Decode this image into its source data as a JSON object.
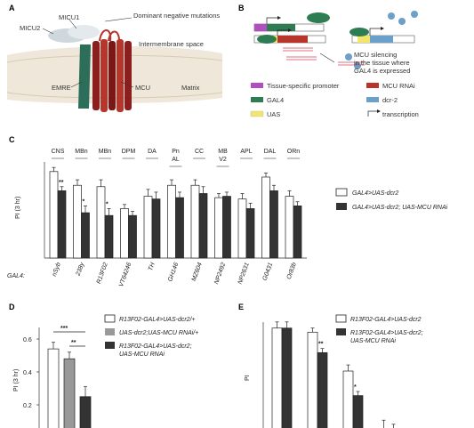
{
  "panels": {
    "a": "A",
    "b": "B",
    "c": "C",
    "d": "D",
    "e": "E"
  },
  "panel_a": {
    "micu1": "MICU1",
    "micu2": "MICU2",
    "dominant": "Dominant negative mutations",
    "intermembrane": "Intermembrane space",
    "emre": "EMRE",
    "mcu": "MCU",
    "matrix": "Matrix"
  },
  "panel_b": {
    "silencing_1": "MCU silencing",
    "silencing_2": "in the tissue where",
    "silencing_3": "GAL4 is expressed",
    "legend": [
      {
        "label": "Tissue-specific promoter",
        "color": "#b24fc0"
      },
      {
        "label": "GAL4",
        "color": "#2e7d52"
      },
      {
        "label": "UAS",
        "color": "#f2e56b"
      },
      {
        "label": "MCU RNAi",
        "color": "#b7352a"
      },
      {
        "label": "dcr-2",
        "color": "#6aa0c9"
      },
      {
        "label": "transcription",
        "color": "#222222"
      }
    ]
  },
  "chart_data": [
    {
      "type": "bar",
      "panel": "C",
      "regions": [
        "CNS",
        "MBn",
        "MBn",
        "DPM",
        "DA",
        "Pn AL",
        "CC",
        "MB V2",
        "APL",
        "DAL",
        "ORn"
      ],
      "categories": [
        "nSyb",
        "238y",
        "R13F02",
        "VT64246",
        "TH",
        "GH146",
        "MZ604",
        "NP2492",
        "NP2631",
        "G0431",
        "Or83b"
      ],
      "gal4_label": "GAL4:",
      "ylabel": "PI (3 hr)",
      "series": [
        {
          "name": "GAL4>UAS-dcr2",
          "values": [
            0.63,
            0.53,
            0.52,
            0.36,
            0.45,
            0.53,
            0.53,
            0.44,
            0.43,
            0.59,
            0.45
          ]
        },
        {
          "name": "GAL4>UAS-dcr2; UAS-MCU RNAi",
          "values": [
            0.49,
            0.33,
            0.31,
            0.31,
            0.43,
            0.44,
            0.47,
            0.45,
            0.36,
            0.49,
            0.38
          ]
        }
      ],
      "errors": [
        [
          0.03,
          0.04,
          0.05,
          0.03,
          0.05,
          0.04,
          0.04,
          0.03,
          0.04,
          0.03,
          0.04
        ],
        [
          0.03,
          0.05,
          0.05,
          0.03,
          0.05,
          0.04,
          0.05,
          0.03,
          0.04,
          0.04,
          0.03
        ]
      ],
      "significance": [
        "**",
        "*",
        "*",
        "",
        "",
        "",
        "",
        "",
        "",
        "",
        ""
      ],
      "ylim": [
        0,
        0.7
      ]
    },
    {
      "type": "bar",
      "panel": "D",
      "ylabel": "PI (3 hr)",
      "yticks": [
        "0.6",
        "0.4",
        "0.2"
      ],
      "series": [
        {
          "name": "R13F02-GAL4>UAS-dcr2/+",
          "color": "#ffffff",
          "value": 0.54,
          "error": 0.04
        },
        {
          "name": "UAS-dcr2;UAS-MCU RNAi/+",
          "color": "#999999",
          "value": 0.48,
          "error": 0.04
        },
        {
          "name": "R13F02-GAL4>UAS-dcr2; UAS-MCU RNAi",
          "color": "#333333",
          "value": 0.25,
          "error": 0.06
        }
      ],
      "significance": [
        "***",
        "**"
      ]
    },
    {
      "type": "bar",
      "panel": "E",
      "ylabel": "PI",
      "series": [
        {
          "name": "R13F02-GAL4>UAS-dcr2",
          "values": [
            0.71,
            0.69,
            0.5,
            0.22,
            0.15
          ]
        },
        {
          "name": "R13F02-GAL4>UAS-dcr2; UAS-MCU RNAi",
          "values": [
            0.71,
            0.59,
            0.38,
            0.2,
            0.16
          ]
        }
      ],
      "errors": [
        [
          0.03,
          0.02,
          0.03,
          0.04,
          0.03
        ],
        [
          0.03,
          0.02,
          0.02,
          0.04,
          0.04
        ]
      ],
      "significance": [
        "",
        "**",
        "*",
        "",
        ""
      ],
      "ylim": [
        0,
        0.8
      ]
    }
  ]
}
